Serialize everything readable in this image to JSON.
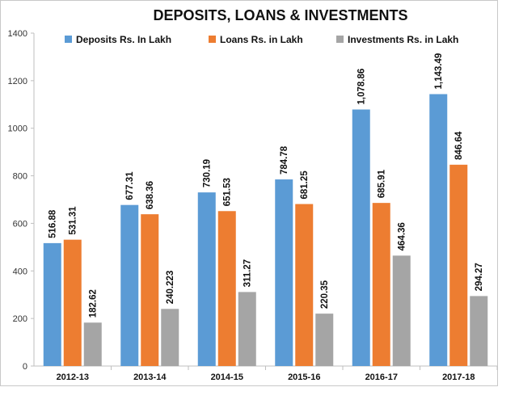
{
  "chart_data": {
    "type": "bar",
    "title": "DEPOSITS, LOANS & INVESTMENTS",
    "categories": [
      "2012-13",
      "2013-14",
      "2014-15",
      "2015-16",
      "2016-17",
      "2017-18"
    ],
    "series": [
      {
        "name": "Deposits Rs. In Lakh",
        "color": "#5b9bd5",
        "values": [
          516.88,
          677.31,
          730.19,
          784.78,
          1078.86,
          1143.49
        ],
        "labels": [
          "516.88",
          "677.31",
          "730.19",
          "784.78",
          "1,078.86",
          "1,143.49"
        ]
      },
      {
        "name": "Loans Rs. in Lakh",
        "color": "#ed7d31",
        "values": [
          531.31,
          638.36,
          651.53,
          681.25,
          685.91,
          846.64
        ],
        "labels": [
          "531.31",
          "638.36",
          "651.53",
          "681.25",
          "685.91",
          "846.64"
        ]
      },
      {
        "name": "Investments Rs. in Lakh",
        "color": "#a5a5a5",
        "values": [
          182.62,
          240.223,
          311.27,
          220.35,
          464.36,
          294.27
        ],
        "labels": [
          "182.62",
          "240.223",
          "311.27",
          "220.35",
          "464.36",
          "294.27"
        ]
      }
    ],
    "ylim": [
      0,
      1400
    ],
    "yticks": [
      "0",
      "200",
      "400",
      "600",
      "800",
      "1000",
      "1200",
      "1400"
    ],
    "grid": false,
    "legend_position": "top"
  }
}
